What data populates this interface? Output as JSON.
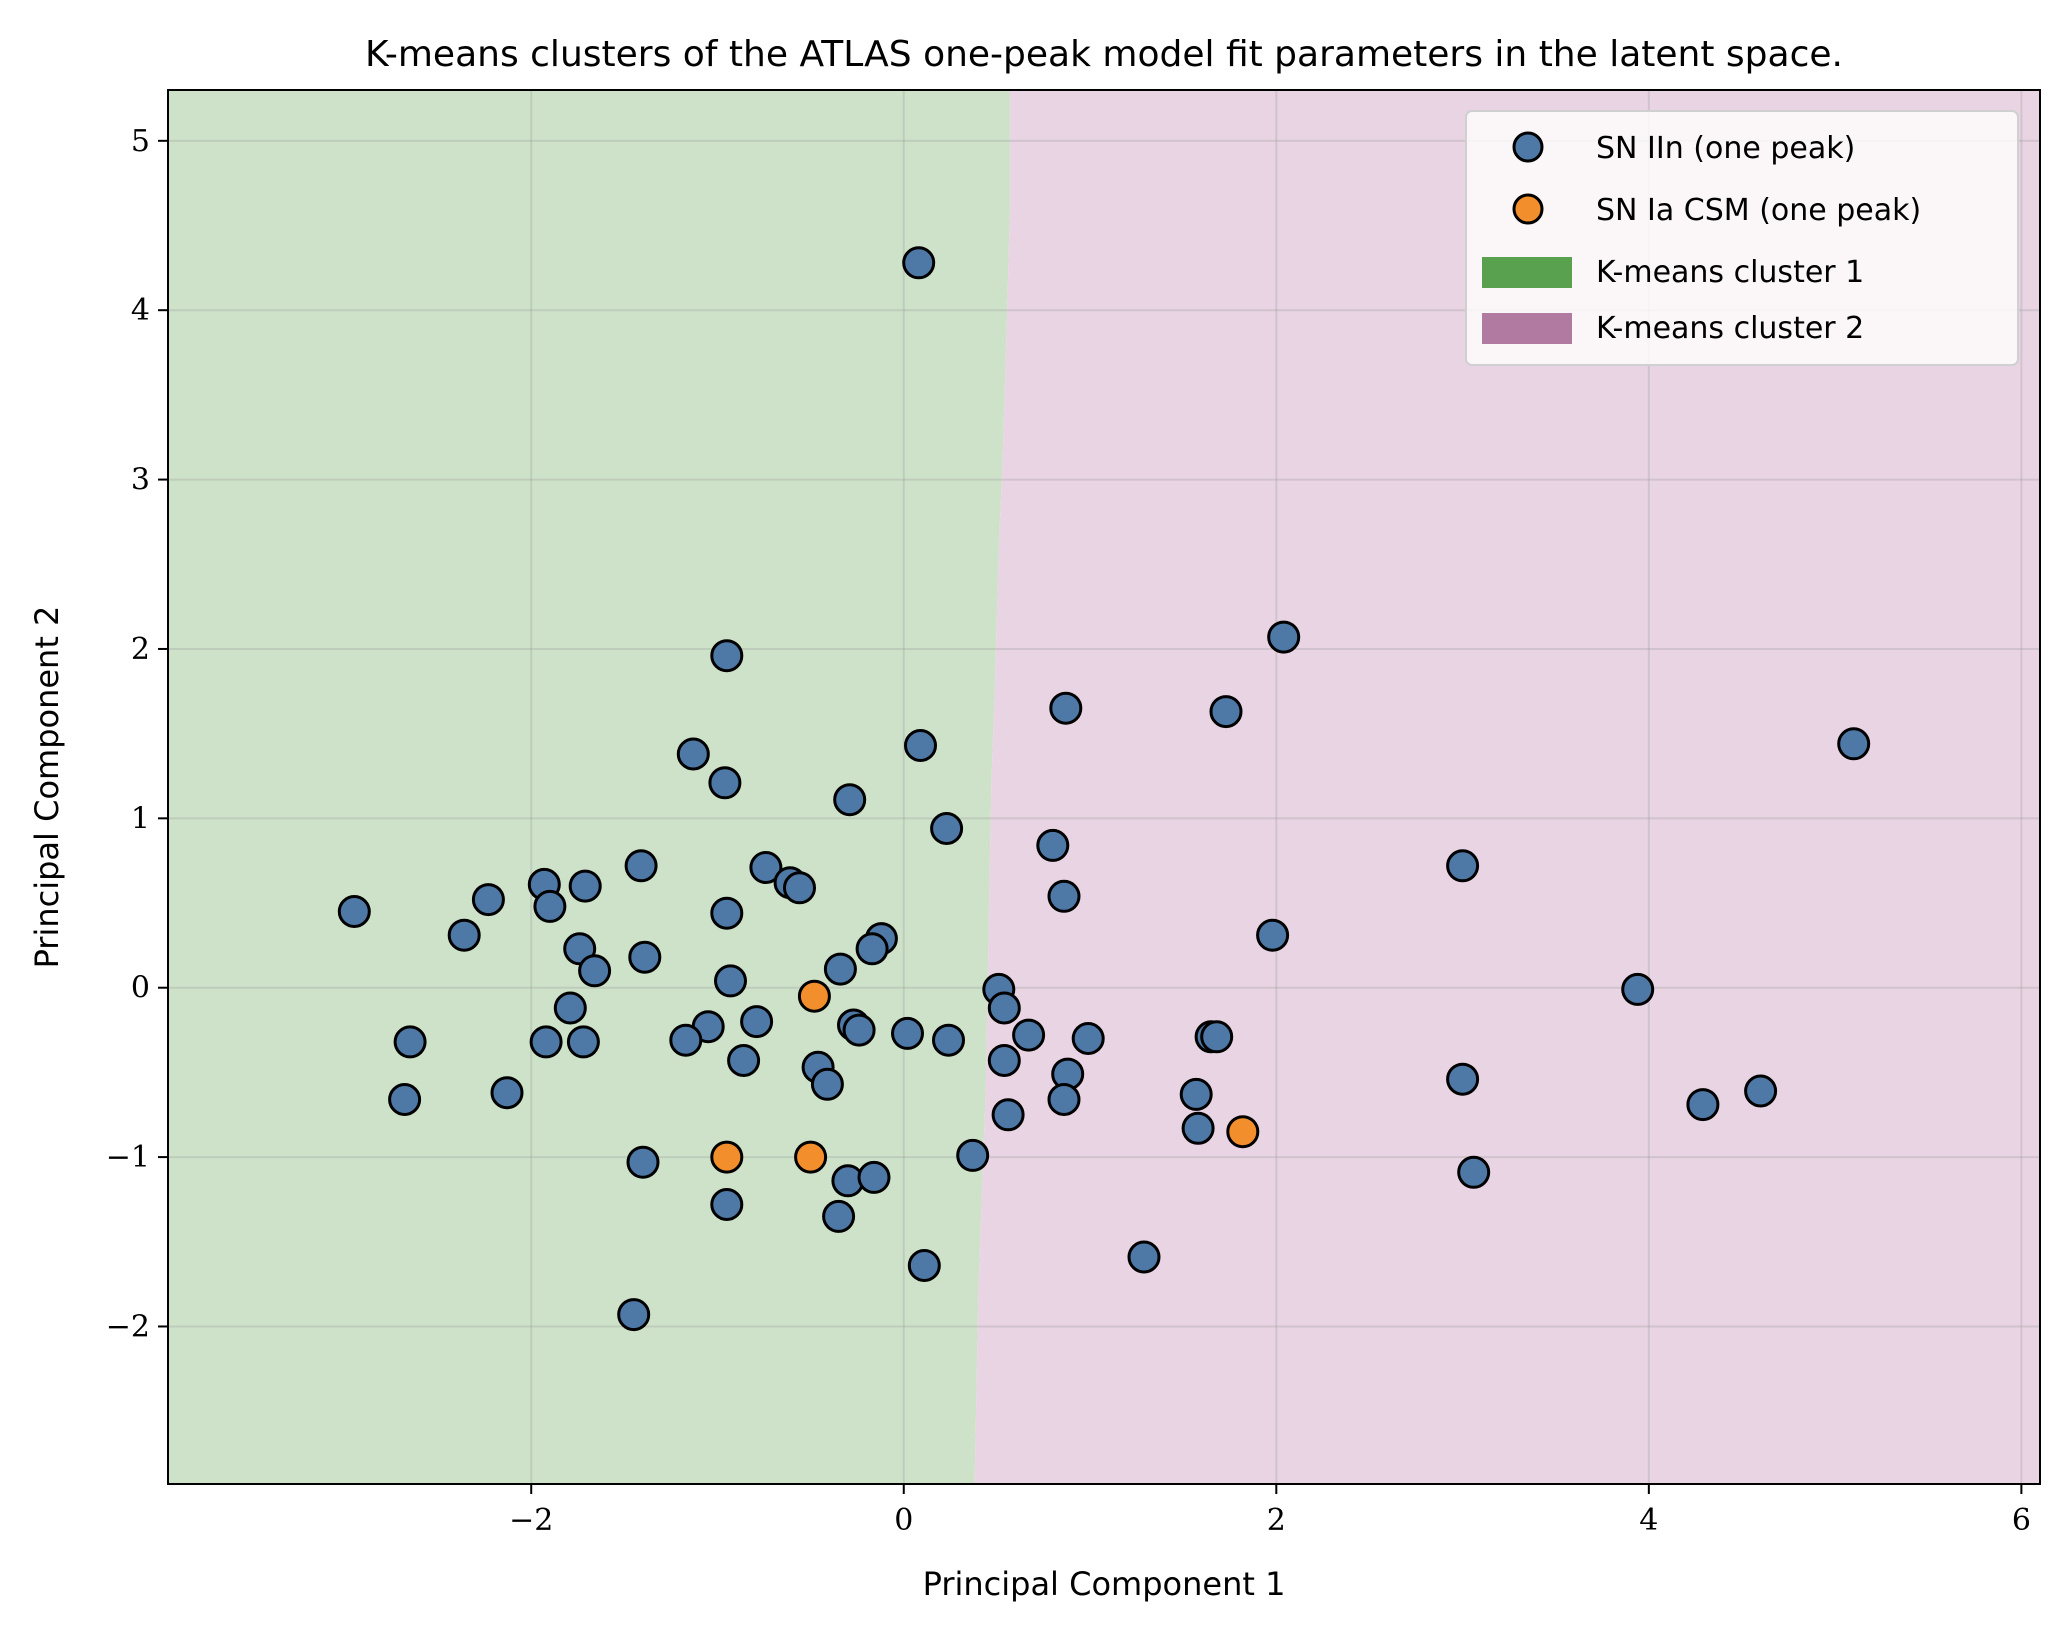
{
  "chart_data": {
    "type": "scatter",
    "title": "K-means clusters of the ATLAS one-peak model fit parameters in the latent space.",
    "xlabel": "Principal Component 1",
    "ylabel": "Principal Component 2",
    "xlim": [
      -3.95,
      6.1
    ],
    "ylim": [
      -2.93,
      5.3
    ],
    "x_ticks": [
      -2,
      0,
      2,
      4,
      6
    ],
    "x_tick_labels": [
      "−2",
      "0",
      "2",
      "4",
      "6"
    ],
    "y_ticks": [
      -2,
      -1,
      0,
      1,
      2,
      3,
      4,
      5
    ],
    "y_tick_labels": [
      "−2",
      "−1",
      "0",
      "1",
      "2",
      "3",
      "4",
      "5"
    ],
    "grid": true,
    "legend_position": "top-right",
    "colors": {
      "sn_iin": "#4e79a7",
      "sn_ia_csm": "#f28e2b",
      "cluster_1": "#59a14f",
      "cluster_2": "#b07aa1",
      "cluster_1_bg": "#cde2c9",
      "cluster_2_bg": "#e8d4e2"
    },
    "cluster_boundary": [
      [
        0.57,
        5.3
      ],
      [
        0.57,
        4.6
      ],
      [
        0.55,
        3.8
      ],
      [
        0.53,
        3.1
      ],
      [
        0.51,
        2.6
      ],
      [
        0.49,
        1.8
      ],
      [
        0.47,
        1.2
      ],
      [
        0.46,
        0.6
      ],
      [
        0.45,
        0.0
      ],
      [
        0.44,
        -0.6
      ],
      [
        0.42,
        -1.2
      ],
      [
        0.4,
        -1.8
      ],
      [
        0.39,
        -2.4
      ],
      [
        0.38,
        -2.93
      ]
    ],
    "regions": [
      {
        "name": "K-means cluster 1",
        "side": "left"
      },
      {
        "name": "K-means cluster 2",
        "side": "right"
      }
    ],
    "series": [
      {
        "name": "SN IIn (one peak)",
        "points": [
          [
            0.08,
            4.28
          ],
          [
            -0.95,
            1.96
          ],
          [
            2.04,
            2.07
          ],
          [
            0.87,
            1.65
          ],
          [
            1.73,
            1.63
          ],
          [
            5.1,
            1.44
          ],
          [
            -1.13,
            1.38
          ],
          [
            0.09,
            1.43
          ],
          [
            -0.96,
            1.21
          ],
          [
            -0.29,
            1.11
          ],
          [
            0.23,
            0.94
          ],
          [
            0.8,
            0.84
          ],
          [
            3.0,
            0.72
          ],
          [
            -1.41,
            0.72
          ],
          [
            -0.74,
            0.71
          ],
          [
            -1.93,
            0.61
          ],
          [
            -1.71,
            0.6
          ],
          [
            -0.61,
            0.62
          ],
          [
            -0.56,
            0.59
          ],
          [
            -2.23,
            0.52
          ],
          [
            0.86,
            0.54
          ],
          [
            -1.9,
            0.48
          ],
          [
            -2.95,
            0.45
          ],
          [
            -0.95,
            0.44
          ],
          [
            -2.36,
            0.31
          ],
          [
            1.98,
            0.31
          ],
          [
            -0.12,
            0.29
          ],
          [
            -1.74,
            0.23
          ],
          [
            -0.17,
            0.23
          ],
          [
            -1.39,
            0.18
          ],
          [
            -0.34,
            0.11
          ],
          [
            -1.66,
            0.1
          ],
          [
            -0.93,
            0.04
          ],
          [
            0.51,
            -0.01
          ],
          [
            3.94,
            -0.01
          ],
          [
            0.54,
            -0.12
          ],
          [
            -1.79,
            -0.12
          ],
          [
            -0.79,
            -0.2
          ],
          [
            -1.05,
            -0.23
          ],
          [
            -0.27,
            -0.22
          ],
          [
            -0.24,
            -0.25
          ],
          [
            0.02,
            -0.27
          ],
          [
            0.67,
            -0.28
          ],
          [
            1.65,
            -0.29
          ],
          [
            1.68,
            -0.29
          ],
          [
            -1.17,
            -0.31
          ],
          [
            -2.65,
            -0.32
          ],
          [
            -1.92,
            -0.32
          ],
          [
            -1.72,
            -0.32
          ],
          [
            0.24,
            -0.31
          ],
          [
            0.99,
            -0.3
          ],
          [
            -0.86,
            -0.43
          ],
          [
            0.54,
            -0.43
          ],
          [
            -0.46,
            -0.47
          ],
          [
            0.88,
            -0.51
          ],
          [
            -0.41,
            -0.57
          ],
          [
            3.0,
            -0.54
          ],
          [
            4.6,
            -0.61
          ],
          [
            -2.13,
            -0.62
          ],
          [
            1.57,
            -0.63
          ],
          [
            -2.68,
            -0.66
          ],
          [
            0.86,
            -0.66
          ],
          [
            4.29,
            -0.69
          ],
          [
            0.56,
            -0.75
          ],
          [
            1.58,
            -0.83
          ],
          [
            0.37,
            -0.99
          ],
          [
            -1.4,
            -1.03
          ],
          [
            3.06,
            -1.09
          ],
          [
            -0.3,
            -1.14
          ],
          [
            -0.16,
            -1.12
          ],
          [
            -0.95,
            -1.28
          ],
          [
            -0.35,
            -1.35
          ],
          [
            1.29,
            -1.59
          ],
          [
            0.11,
            -1.64
          ],
          [
            -1.45,
            -1.93
          ]
        ]
      },
      {
        "name": "SN Ia CSM (one peak)",
        "points": [
          [
            -0.48,
            -0.05
          ],
          [
            -0.95,
            -1.0
          ],
          [
            -0.5,
            -1.0
          ],
          [
            1.82,
            -0.85
          ]
        ]
      }
    ],
    "legend": [
      {
        "label": "SN IIn (one peak)",
        "kind": "marker",
        "color": "#4e79a7"
      },
      {
        "label": "SN Ia CSM (one peak)",
        "kind": "marker",
        "color": "#f28e2b"
      },
      {
        "label": "K-means cluster 1",
        "kind": "patch",
        "color": "#59a14f"
      },
      {
        "label": "K-means cluster 2",
        "kind": "patch",
        "color": "#b07aa1"
      }
    ]
  }
}
